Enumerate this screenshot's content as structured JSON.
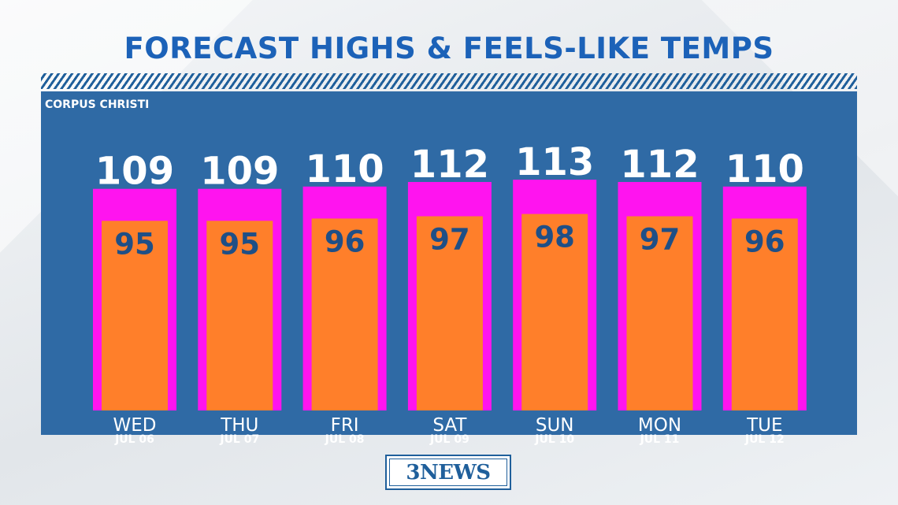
{
  "title": "FORECAST HIGHS & FEELS-LIKE TEMPS",
  "location": "CORPUS CHRISTI",
  "logo_text": "3NEWS",
  "colors": {
    "panel": "#2f6aa5",
    "feels_like_bar": "#ff14ef",
    "high_bar": "#ff7f2a",
    "title": "#1c62b8",
    "high_label": "#1f4f86",
    "feels_label": "#ffffff"
  },
  "chart_data": {
    "type": "bar",
    "categories": [
      "WED",
      "THU",
      "FRI",
      "SAT",
      "SUN",
      "MON",
      "TUE"
    ],
    "dates": [
      "JUL 06",
      "JUL 07",
      "JUL 08",
      "JUL 09",
      "JUL 10",
      "JUL 11",
      "JUL 12"
    ],
    "series": [
      {
        "values": [
          109,
          109,
          110,
          112,
          113,
          112,
          110
        ]
      },
      {
        "values": [
          95,
          95,
          96,
          97,
          98,
          97,
          96
        ]
      }
    ],
    "grid": false,
    "legend": "none"
  }
}
